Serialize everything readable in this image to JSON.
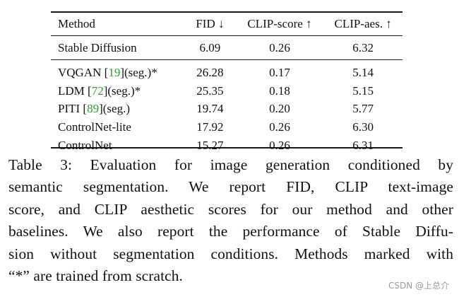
{
  "table": {
    "headers": {
      "method": "Method",
      "fid": "FID ↓",
      "clip_score": "CLIP-score ↑",
      "clip_aes": "CLIP-aes. ↑"
    },
    "baseline": {
      "method": "Stable Diffusion",
      "fid": "6.09",
      "clip_score": "0.26",
      "clip_aes": "6.32"
    },
    "rows": [
      {
        "name": "VQGAN ",
        "cite": "19",
        "suffix": "(seg.)*",
        "fid": "26.28",
        "clip_score": "0.17",
        "clip_aes": "5.14"
      },
      {
        "name": "LDM ",
        "cite": "72",
        "suffix": "(seg.)*",
        "fid": "25.35",
        "clip_score": "0.18",
        "clip_aes": "5.15"
      },
      {
        "name": "PITI ",
        "cite": "89",
        "suffix": "(seg.)",
        "fid": "19.74",
        "clip_score": "0.20",
        "clip_aes": "5.77"
      },
      {
        "name": "ControlNet-lite",
        "cite": "",
        "suffix": "",
        "fid": "17.92",
        "clip_score": "0.26",
        "clip_aes": "6.30"
      },
      {
        "name": "ControlNet",
        "cite": "",
        "suffix": "",
        "fid": "15.27",
        "clip_score": "0.26",
        "clip_aes": "6.31"
      }
    ]
  },
  "caption": {
    "lines": [
      "Table 3: Evaluation for image generation conditioned by",
      "semantic segmentation. We report FID, CLIP text-image",
      "score, and CLIP aesthetic scores for our method and other",
      "baselines. We also report the performance of Stable Diffu-",
      "sion without segmentation conditions. Methods marked with",
      "“*” are trained from scratch."
    ]
  },
  "watermark": "CSDN @上总介"
}
